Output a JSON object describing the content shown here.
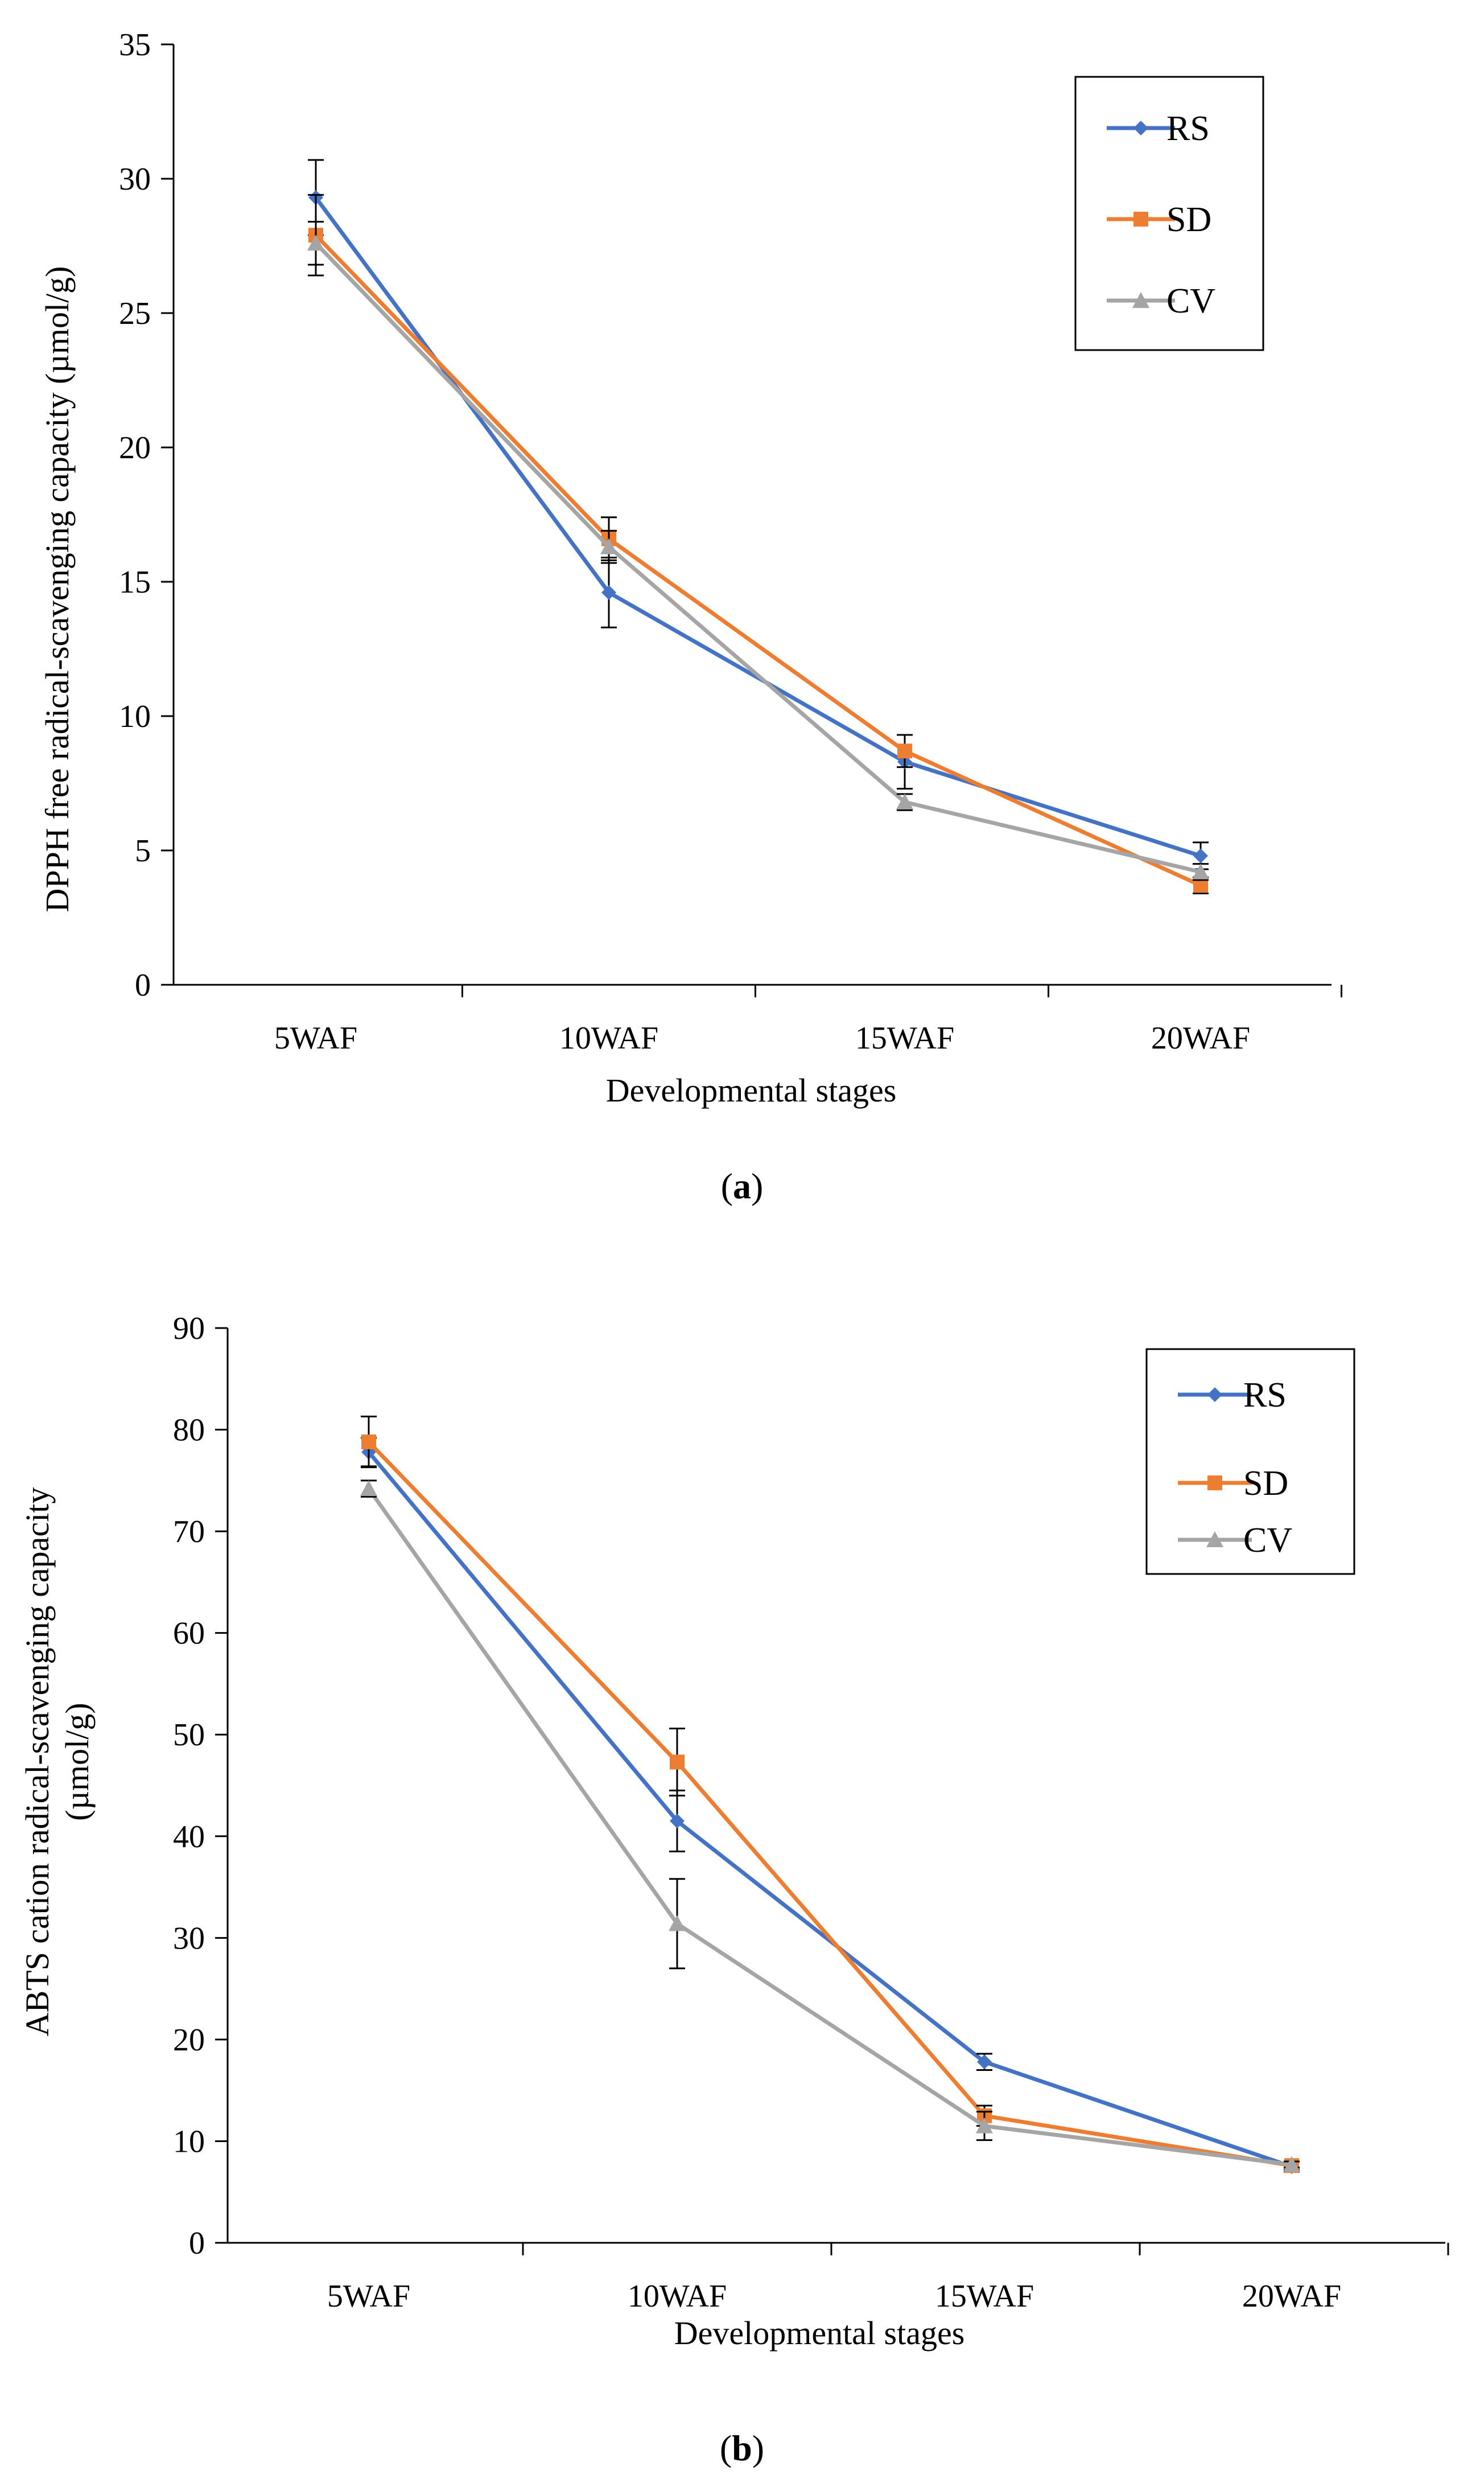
{
  "chart_data": [
    {
      "type": "line",
      "caption_letter": "a",
      "categories": [
        "5WAF",
        "10WAF",
        "15WAF",
        "20WAF"
      ],
      "xlabel": "Developmental stages",
      "ylabel": "DPPH free radical-scavenging capacity (µmol/g)",
      "ylim": [
        0,
        35
      ],
      "yticks": [
        0,
        5,
        10,
        15,
        20,
        25,
        30,
        35
      ],
      "grid": false,
      "legend_position": "top-right",
      "series": [
        {
          "name": "RS",
          "color": "#4472C4",
          "marker": "diamond",
          "values": [
            29.3,
            14.6,
            8.3,
            4.8
          ],
          "errors": [
            1.4,
            1.3,
            1.0,
            0.5
          ]
        },
        {
          "name": "SD",
          "color": "#ED7D31",
          "marker": "square",
          "values": [
            27.9,
            16.6,
            8.7,
            3.7
          ],
          "errors": [
            1.5,
            0.8,
            0.6,
            0.3
          ]
        },
        {
          "name": "CV",
          "color": "#A5A5A5",
          "marker": "triangle",
          "values": [
            27.6,
            16.3,
            6.8,
            4.2
          ],
          "errors": [
            0.8,
            0.6,
            0.3,
            0.3
          ]
        }
      ]
    },
    {
      "type": "line",
      "caption_letter": "b",
      "categories": [
        "5WAF",
        "10WAF",
        "15WAF",
        "20WAF"
      ],
      "xlabel": "Developmental stages",
      "ylabel_line1": "ABTS cation radical-scavenging capacity",
      "ylabel_line2": "(µmol/g)",
      "ylim": [
        0,
        90
      ],
      "yticks": [
        0,
        10,
        20,
        30,
        40,
        50,
        60,
        70,
        80,
        90
      ],
      "grid": false,
      "legend_position": "top-right",
      "series": [
        {
          "name": "RS",
          "color": "#4472C4",
          "marker": "diamond",
          "values": [
            77.8,
            41.5,
            17.8,
            7.5
          ],
          "errors": [
            1.4,
            3.0,
            0.8,
            0.5
          ]
        },
        {
          "name": "SD",
          "color": "#ED7D31",
          "marker": "square",
          "values": [
            78.8,
            47.3,
            12.5,
            7.6
          ],
          "errors": [
            2.5,
            3.3,
            1.0,
            0.4
          ]
        },
        {
          "name": "CV",
          "color": "#A5A5A5",
          "marker": "triangle",
          "values": [
            74.2,
            31.4,
            11.5,
            7.7
          ],
          "errors": [
            0.8,
            4.4,
            1.4,
            0.3
          ]
        }
      ]
    }
  ]
}
